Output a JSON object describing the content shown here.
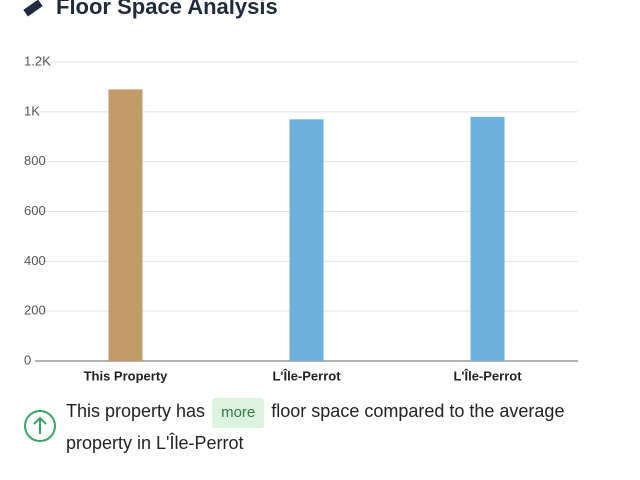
{
  "header": {
    "title": "Floor Space Analysis"
  },
  "chart_data": {
    "type": "bar",
    "categories": [
      "This Property",
      "L'Île-Perrot",
      "L'Île-Perrot"
    ],
    "values": [
      1090,
      970,
      980
    ],
    "colors": [
      "#c29b68",
      "#6cb2dc",
      "#6cb2dc"
    ],
    "ylim": [
      0,
      1200
    ],
    "yticks": [
      0,
      200,
      400,
      600,
      800,
      {
        "value": 1000,
        "label": "1K"
      },
      {
        "value": 1200,
        "label": "1.2K"
      }
    ],
    "grid": true
  },
  "insight": {
    "before": "This property has",
    "badge": "more",
    "after": "floor space compared to the average property in L'Île-Perrot"
  }
}
